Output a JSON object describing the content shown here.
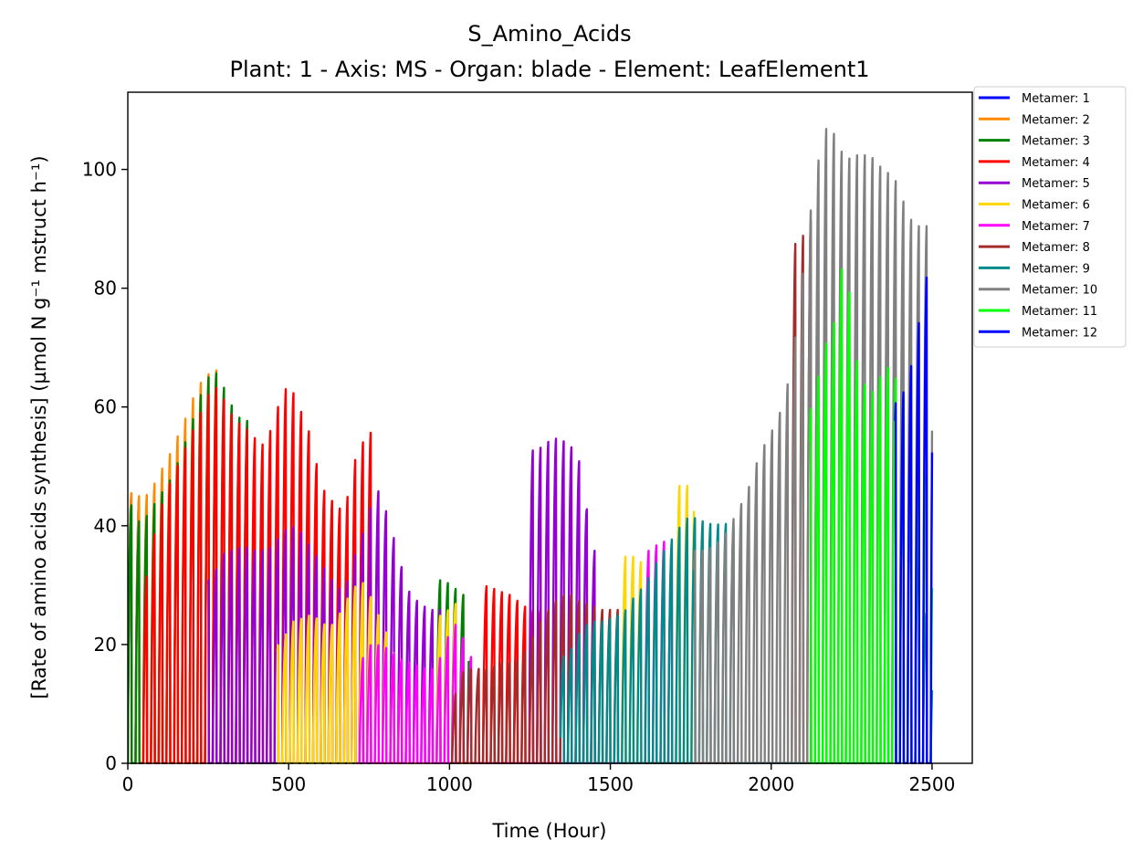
{
  "chart_data": {
    "type": "line",
    "title": "S_Amino_Acids",
    "subtitle": "Plant: 1 - Axis: MS - Organ: blade - Element: LeafElement1",
    "xlabel": "Time (Hour)",
    "ylabel": "[Rate of amino acids synthesis] (µmol N g⁻¹ mstruct h⁻¹)",
    "xlim": [
      0,
      2625
    ],
    "ylim": [
      0,
      113
    ],
    "xticks": [
      0,
      500,
      1000,
      1500,
      2000,
      2500
    ],
    "yticks": [
      0,
      20,
      40,
      60,
      80,
      100
    ],
    "grid": false,
    "legend_position": "outside-right",
    "oscillation_period_hours": 24,
    "series": [
      {
        "name": "Metamer: 1",
        "color": "#0000ff",
        "start": 0,
        "end": 35,
        "peaks": [
          [
            0,
            46
          ],
          [
            24,
            45
          ]
        ]
      },
      {
        "name": "Metamer: 2",
        "color": "#ff8c00",
        "start": 0,
        "end": 290,
        "peaks": [
          [
            0,
            46
          ],
          [
            48,
            45
          ],
          [
            72,
            46
          ],
          [
            96,
            49
          ],
          [
            120,
            51
          ],
          [
            144,
            54
          ],
          [
            168,
            57
          ],
          [
            192,
            60
          ],
          [
            216,
            64
          ],
          [
            240,
            65
          ],
          [
            264,
            67
          ],
          [
            288,
            66
          ]
        ]
      },
      {
        "name": "Metamer: 3",
        "color": "#008000",
        "start": 0,
        "end": 1060,
        "peaks": [
          [
            0,
            46
          ],
          [
            24,
            41
          ],
          [
            48,
            41
          ],
          [
            72,
            43
          ],
          [
            96,
            45
          ],
          [
            120,
            47
          ],
          [
            144,
            49
          ],
          [
            168,
            53
          ],
          [
            192,
            56
          ],
          [
            216,
            61
          ],
          [
            240,
            64
          ],
          [
            264,
            67
          ],
          [
            288,
            65
          ],
          [
            312,
            62
          ],
          [
            336,
            59
          ],
          [
            360,
            58
          ],
          [
            984,
            31
          ],
          [
            1008,
            30
          ],
          [
            1032,
            29
          ],
          [
            1056,
            28
          ]
        ]
      },
      {
        "name": "Metamer: 4",
        "color": "#ff0000",
        "start": 40,
        "end": 1290,
        "peaks": [
          [
            48,
            28
          ],
          [
            72,
            36
          ],
          [
            96,
            42
          ],
          [
            120,
            46
          ],
          [
            144,
            49
          ],
          [
            168,
            52
          ],
          [
            192,
            55
          ],
          [
            216,
            58
          ],
          [
            240,
            61
          ],
          [
            264,
            64
          ],
          [
            288,
            63
          ],
          [
            312,
            60
          ],
          [
            336,
            58
          ],
          [
            360,
            57
          ],
          [
            384,
            56
          ],
          [
            408,
            54
          ],
          [
            432,
            54
          ],
          [
            456,
            59
          ],
          [
            480,
            62
          ],
          [
            504,
            65
          ],
          [
            528,
            60
          ],
          [
            552,
            59
          ],
          [
            576,
            53
          ],
          [
            600,
            48
          ],
          [
            624,
            44
          ],
          [
            648,
            45
          ],
          [
            672,
            41
          ],
          [
            696,
            50
          ],
          [
            720,
            53
          ],
          [
            744,
            56
          ],
          [
            1128,
            30
          ],
          [
            1152,
            29
          ],
          [
            1176,
            29
          ],
          [
            1200,
            28
          ],
          [
            1224,
            27
          ],
          [
            1248,
            26
          ],
          [
            1272,
            26
          ]
        ]
      },
      {
        "name": "Metamer: 5",
        "color": "#9400d3",
        "start": 250,
        "end": 1460,
        "peaks": [
          [
            264,
            31
          ],
          [
            288,
            35
          ],
          [
            312,
            36
          ],
          [
            336,
            36
          ],
          [
            360,
            37
          ],
          [
            384,
            36
          ],
          [
            408,
            36
          ],
          [
            432,
            36
          ],
          [
            456,
            37
          ],
          [
            480,
            39
          ],
          [
            504,
            40
          ],
          [
            528,
            40
          ],
          [
            552,
            38
          ],
          [
            576,
            36
          ],
          [
            600,
            34
          ],
          [
            624,
            32
          ],
          [
            648,
            30
          ],
          [
            672,
            29
          ],
          [
            696,
            33
          ],
          [
            720,
            38
          ],
          [
            744,
            40
          ],
          [
            768,
            47
          ],
          [
            792,
            45
          ],
          [
            816,
            40
          ],
          [
            840,
            36
          ],
          [
            864,
            30
          ],
          [
            888,
            28
          ],
          [
            912,
            27
          ],
          [
            936,
            26
          ],
          [
            960,
            26
          ],
          [
            1272,
            53
          ],
          [
            1296,
            54
          ],
          [
            1320,
            55
          ],
          [
            1344,
            55
          ],
          [
            1368,
            54
          ],
          [
            1392,
            53
          ],
          [
            1416,
            49
          ],
          [
            1440,
            36
          ]
        ]
      },
      {
        "name": "Metamer: 6",
        "color": "#ffd700",
        "start": 465,
        "end": 1760,
        "peaks": [
          [
            480,
            20
          ],
          [
            504,
            24
          ],
          [
            528,
            24
          ],
          [
            552,
            25
          ],
          [
            576,
            25
          ],
          [
            600,
            24
          ],
          [
            624,
            23
          ],
          [
            648,
            24
          ],
          [
            672,
            27
          ],
          [
            696,
            29
          ],
          [
            720,
            31
          ],
          [
            744,
            30
          ],
          [
            768,
            26
          ],
          [
            792,
            24
          ],
          [
            816,
            20
          ],
          [
            840,
            17
          ],
          [
            984,
            25
          ],
          [
            1008,
            27
          ],
          [
            1560,
            35
          ],
          [
            1584,
            35
          ],
          [
            1608,
            33
          ],
          [
            1728,
            47
          ]
        ]
      },
      {
        "name": "Metamer: 7",
        "color": "#ff00ff",
        "start": 710,
        "end": 1700,
        "peaks": [
          [
            720,
            16
          ],
          [
            744,
            20
          ],
          [
            768,
            20
          ],
          [
            792,
            20
          ],
          [
            816,
            19
          ],
          [
            840,
            18
          ],
          [
            864,
            17
          ],
          [
            888,
            17
          ],
          [
            912,
            16
          ],
          [
            936,
            16
          ],
          [
            960,
            16
          ],
          [
            984,
            20
          ],
          [
            1008,
            23
          ],
          [
            1032,
            24
          ],
          [
            1056,
            18
          ],
          [
            1632,
            36
          ],
          [
            1656,
            38
          ],
          [
            1680,
            37
          ]
        ]
      },
      {
        "name": "Metamer: 8",
        "color": "#a52a2a",
        "start": 1000,
        "end": 2140,
        "peaks": [
          [
            1008,
            9
          ],
          [
            1032,
            15
          ],
          [
            1056,
            16
          ],
          [
            1080,
            16
          ],
          [
            1104,
            16
          ],
          [
            1128,
            16
          ],
          [
            1152,
            17
          ],
          [
            1176,
            17
          ],
          [
            1200,
            17
          ],
          [
            1224,
            18
          ],
          [
            1248,
            20
          ],
          [
            1272,
            23
          ],
          [
            1296,
            25
          ],
          [
            1320,
            27
          ],
          [
            1344,
            28
          ],
          [
            1368,
            29
          ],
          [
            1392,
            28
          ],
          [
            1416,
            27
          ],
          [
            1440,
            27
          ],
          [
            1464,
            26
          ],
          [
            1488,
            26
          ],
          [
            1512,
            26
          ],
          [
            2088,
            88
          ],
          [
            2112,
            91
          ],
          [
            2136,
            93
          ]
        ]
      },
      {
        "name": "Metamer: 9",
        "color": "#008b8b",
        "start": 1345,
        "end": 2500,
        "peaks": [
          [
            1368,
            18
          ],
          [
            1392,
            21
          ],
          [
            1416,
            23
          ],
          [
            1440,
            24
          ],
          [
            1464,
            24
          ],
          [
            1488,
            24
          ],
          [
            1512,
            25
          ],
          [
            1536,
            25
          ],
          [
            1560,
            27
          ],
          [
            1584,
            29
          ],
          [
            1608,
            30
          ],
          [
            1632,
            33
          ],
          [
            1656,
            35
          ],
          [
            1680,
            37
          ],
          [
            1704,
            39
          ],
          [
            1728,
            41
          ],
          [
            1752,
            42
          ],
          [
            1776,
            41
          ],
          [
            1800,
            41
          ],
          [
            1824,
            40
          ],
          [
            1848,
            41
          ],
          [
            1872,
            40
          ],
          [
            2376,
            73
          ],
          [
            2424,
            58
          ],
          [
            2448,
            48
          ],
          [
            2472,
            30
          ],
          [
            2496,
            20
          ]
        ]
      },
      {
        "name": "Metamer: 10",
        "color": "#808080",
        "start": 1760,
        "end": 2500,
        "peaks": [
          [
            1776,
            36
          ],
          [
            1800,
            36
          ],
          [
            1824,
            37
          ],
          [
            1848,
            38
          ],
          [
            1872,
            40
          ],
          [
            1896,
            43
          ],
          [
            1920,
            45
          ],
          [
            1944,
            49
          ],
          [
            1968,
            53
          ],
          [
            1992,
            55
          ],
          [
            2016,
            58
          ],
          [
            2040,
            61
          ],
          [
            2064,
            68
          ],
          [
            2088,
            77
          ],
          [
            2112,
            90
          ],
          [
            2136,
            98
          ],
          [
            2160,
            107
          ],
          [
            2184,
            108
          ],
          [
            2208,
            105
          ],
          [
            2232,
            102
          ],
          [
            2256,
            103
          ],
          [
            2280,
            103
          ],
          [
            2304,
            103
          ],
          [
            2328,
            102
          ],
          [
            2352,
            100
          ],
          [
            2376,
            100
          ],
          [
            2400,
            97
          ],
          [
            2424,
            93
          ],
          [
            2448,
            91
          ],
          [
            2472,
            91
          ],
          [
            2496,
            91
          ]
        ]
      },
      {
        "name": "Metamer: 11",
        "color": "#00ff00",
        "start": 2120,
        "end": 2500,
        "peaks": [
          [
            2136,
            60
          ],
          [
            2160,
            72
          ],
          [
            2184,
            70
          ],
          [
            2208,
            80
          ],
          [
            2232,
            88
          ],
          [
            2256,
            70
          ],
          [
            2280,
            66
          ],
          [
            2304,
            62
          ],
          [
            2328,
            64
          ],
          [
            2352,
            67
          ],
          [
            2376,
            67
          ],
          [
            2400,
            63
          ],
          [
            2424,
            60
          ],
          [
            2448,
            55
          ],
          [
            2472,
            50
          ],
          [
            2496,
            48
          ]
        ]
      },
      {
        "name": "Metamer: 12",
        "color": "#0000ff",
        "start": 2385,
        "end": 2500,
        "peaks": [
          [
            2400,
            61
          ],
          [
            2424,
            65
          ],
          [
            2448,
            70
          ],
          [
            2472,
            80
          ],
          [
            2496,
            85
          ]
        ]
      }
    ]
  }
}
